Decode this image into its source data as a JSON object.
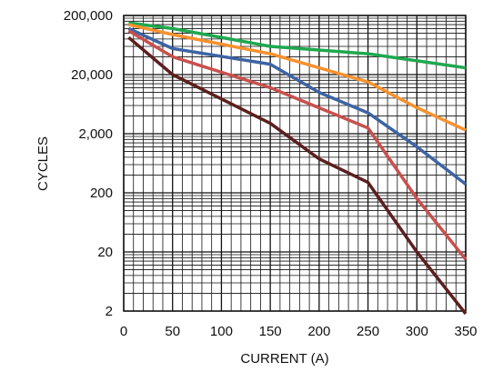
{
  "chart_data": {
    "type": "line",
    "xlabel": "CURRENT (A)",
    "ylabel": "CYCLES",
    "xlim": [
      0,
      350
    ],
    "ylim": [
      2,
      200000
    ],
    "yscale": "log",
    "grid": true,
    "x_ticks": [
      {
        "value": 0,
        "label": "0"
      },
      {
        "value": 50,
        "label": "50"
      },
      {
        "value": 100,
        "label": "100"
      },
      {
        "value": 150,
        "label": "150"
      },
      {
        "value": 200,
        "label": "200"
      },
      {
        "value": 250,
        "label": "250"
      },
      {
        "value": 300,
        "label": "300"
      },
      {
        "value": 350,
        "label": "350"
      }
    ],
    "y_ticks": [
      {
        "value": 2,
        "label": "2"
      },
      {
        "value": 20,
        "label": "20"
      },
      {
        "value": 200,
        "label": "200"
      },
      {
        "value": 2000,
        "label": "2,000"
      },
      {
        "value": 20000,
        "label": "20,000"
      },
      {
        "value": 200000,
        "label": "200,000"
      }
    ],
    "series": [
      {
        "color": "#1fa84f",
        "points": [
          [
            5,
            150000
          ],
          [
            50,
            120000
          ],
          [
            150,
            60000
          ],
          [
            250,
            45000
          ],
          [
            350,
            26000
          ]
        ]
      },
      {
        "color": "#f7922e",
        "points": [
          [
            5,
            140000
          ],
          [
            50,
            95000
          ],
          [
            150,
            45000
          ],
          [
            250,
            15000
          ],
          [
            300,
            5500
          ],
          [
            350,
            2300
          ]
        ]
      },
      {
        "color": "#3d64a3",
        "points": [
          [
            5,
            120000
          ],
          [
            50,
            55000
          ],
          [
            150,
            30000
          ],
          [
            200,
            10000
          ],
          [
            250,
            4500
          ],
          [
            300,
            1200
          ],
          [
            350,
            280
          ]
        ]
      },
      {
        "color": "#c9504d",
        "points": [
          [
            5,
            110000
          ],
          [
            50,
            40000
          ],
          [
            150,
            12000
          ],
          [
            250,
            2500
          ],
          [
            300,
            160
          ],
          [
            350,
            15
          ]
        ]
      },
      {
        "color": "#5c1f1f",
        "points": [
          [
            5,
            85000
          ],
          [
            50,
            20000
          ],
          [
            150,
            3000
          ],
          [
            200,
            750
          ],
          [
            250,
            300
          ],
          [
            300,
            20
          ],
          [
            350,
            1.8
          ]
        ]
      }
    ]
  }
}
